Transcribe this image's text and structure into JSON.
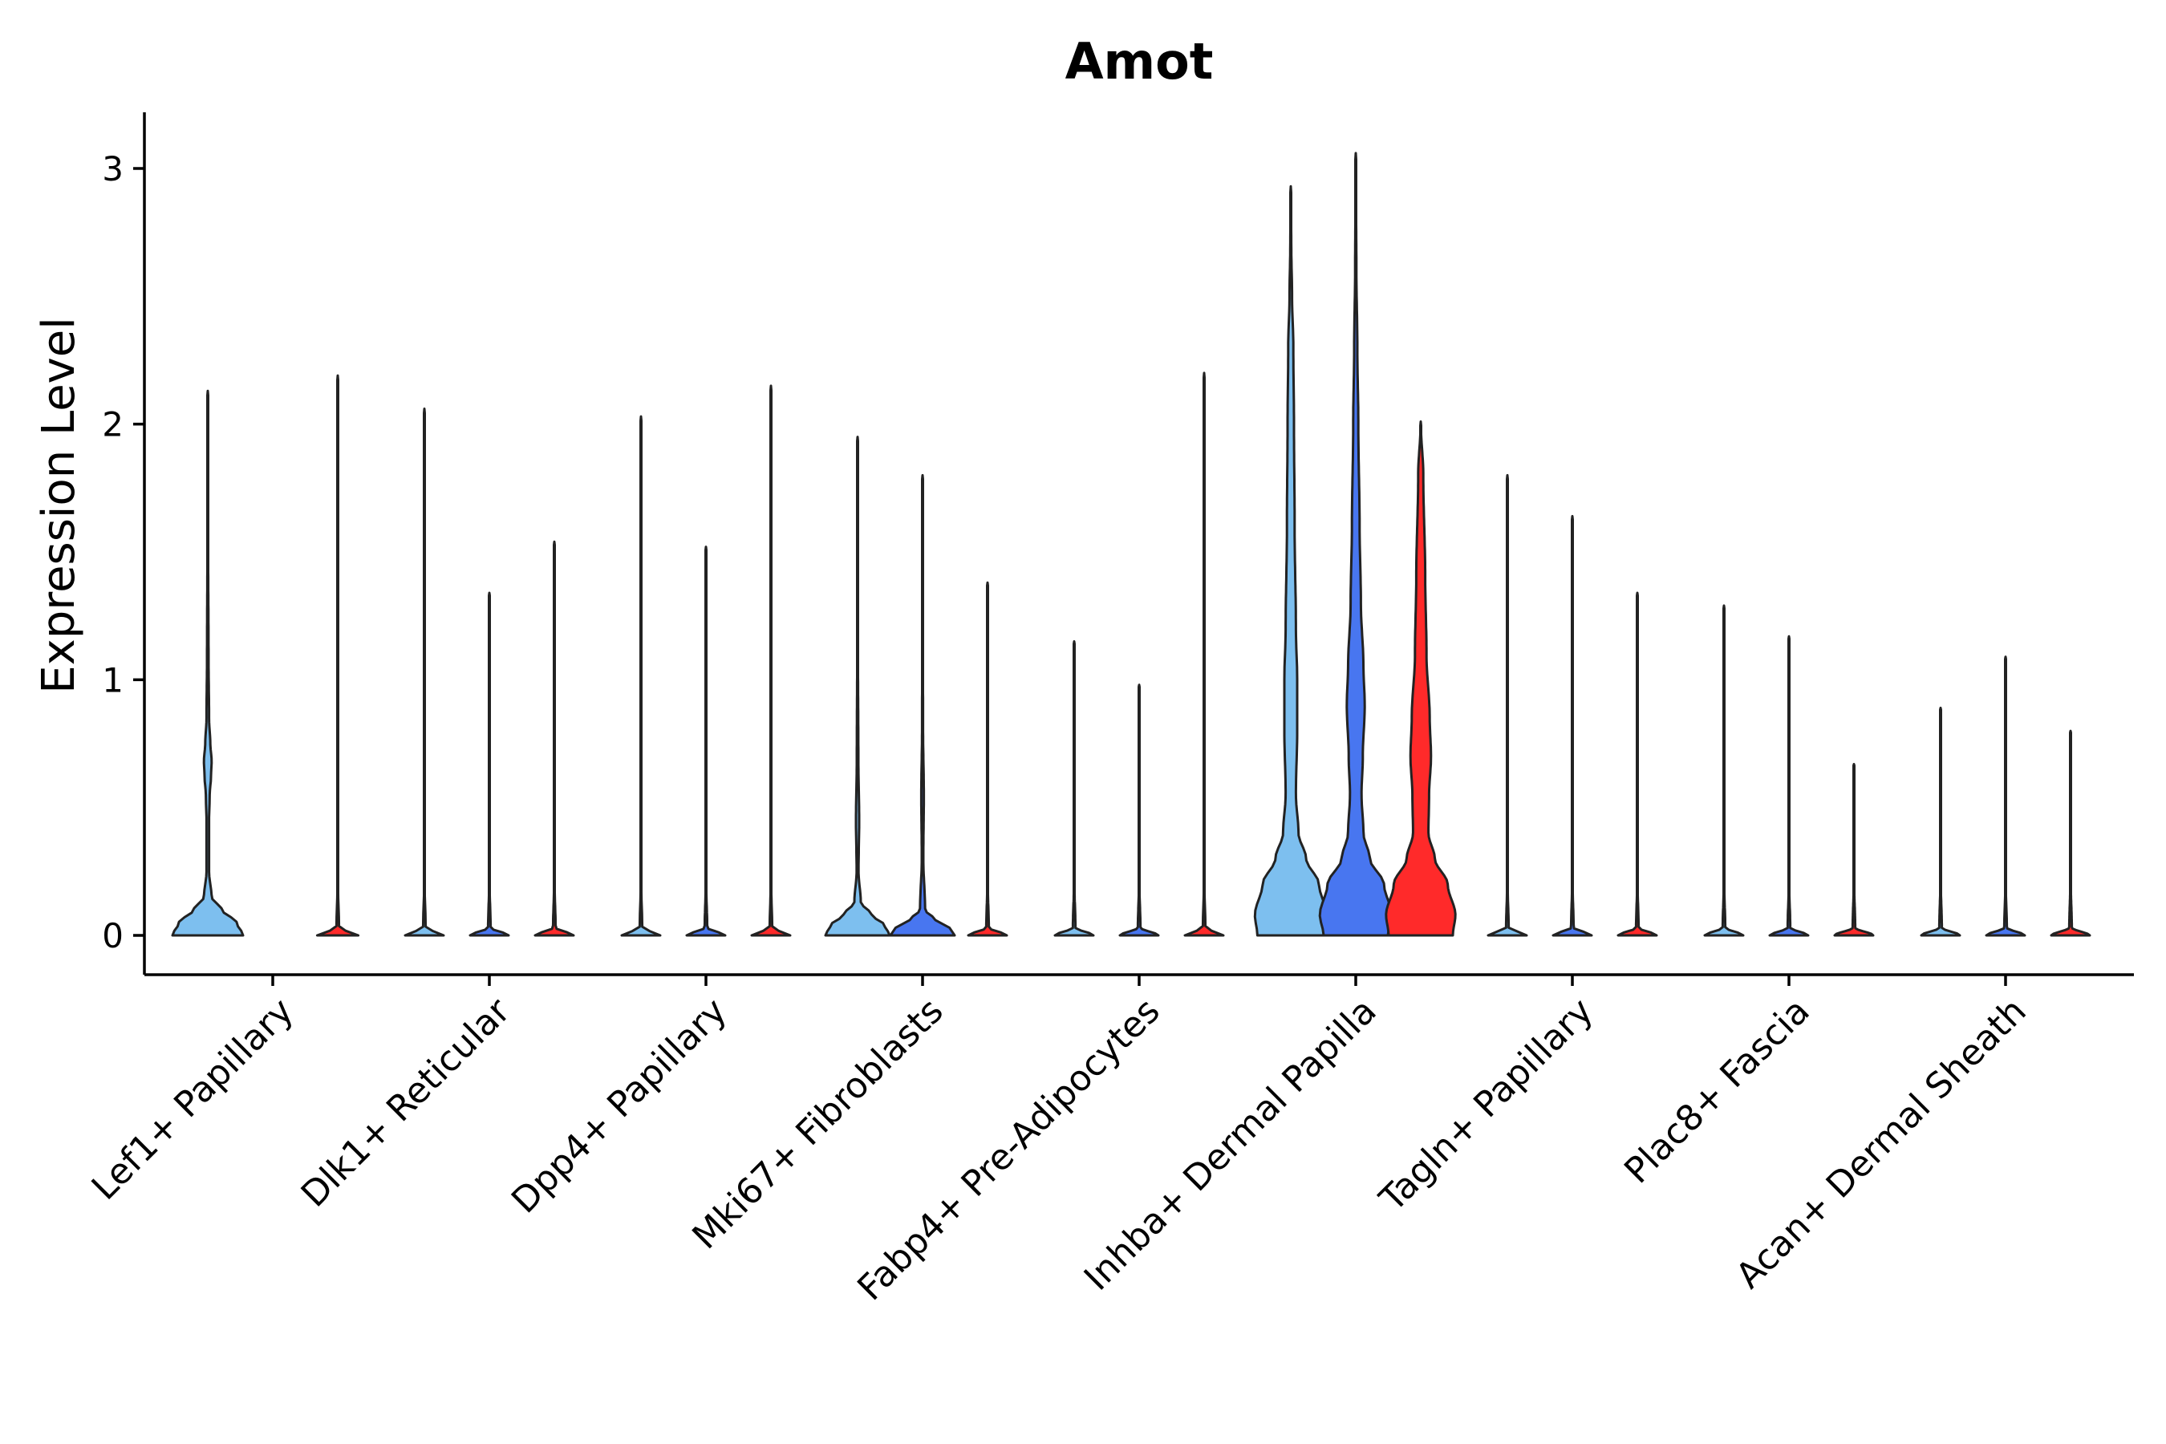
{
  "chart_data": {
    "type": "violin",
    "title": "Amot",
    "xlabel": "",
    "ylabel": "Expression Level",
    "ylim": [
      -0.15,
      3.2
    ],
    "yticks": [
      0,
      1,
      2,
      3
    ],
    "grid": false,
    "legend": "none",
    "colors": {
      "group1": "#7dbfef",
      "group2": "#4876f0",
      "group3": "#ff2a2a"
    },
    "categories": [
      "Lef1+ Papillary",
      "Dlk1+ Reticular",
      "Dpp4+ Papillary",
      "Mki67+ Fibroblasts",
      "Fabp4+ Pre-Adipocytes",
      "Inhba+ Dermal Papilla",
      "Tagln+ Papillary",
      "Plac8+ Fascia",
      "Acan+ Dermal Sheath"
    ],
    "series": [
      {
        "name": "group1",
        "color": "#7dbfef",
        "max_values": [
          2.13,
          2.06,
          2.03,
          1.95,
          1.15,
          2.93,
          1.8,
          1.29,
          0.89
        ]
      },
      {
        "name": "group2",
        "color": "#4876f0",
        "max_values": [
          null,
          1.34,
          1.52,
          1.8,
          0.98,
          3.06,
          1.64,
          1.17,
          1.09
        ]
      },
      {
        "name": "group3",
        "color": "#ff2a2a",
        "max_values": [
          2.19,
          1.54,
          2.15,
          1.38,
          2.2,
          2.01,
          1.34,
          0.67,
          0.8
        ]
      }
    ],
    "violins": [
      {
        "category": 0,
        "group": 0,
        "max": 2.13,
        "shape": [
          [
            0,
            0.55
          ],
          [
            0.05,
            0.45
          ],
          [
            0.1,
            0.22
          ],
          [
            0.15,
            0.06
          ],
          [
            0.25,
            0.02
          ],
          [
            0.45,
            0.02
          ],
          [
            0.55,
            0.03
          ],
          [
            0.62,
            0.05
          ],
          [
            0.68,
            0.06
          ],
          [
            0.75,
            0.04
          ],
          [
            0.85,
            0.02
          ],
          [
            1.1,
            0.012
          ],
          [
            1.5,
            0.006
          ],
          [
            2.13,
            0.0
          ]
        ]
      },
      {
        "category": 0,
        "group": 2,
        "max": 2.19,
        "shape": [
          [
            0,
            0.32
          ],
          [
            0.03,
            0.02
          ],
          [
            0.2,
            0.004
          ],
          [
            2.19,
            0.0
          ]
        ]
      },
      {
        "category": 1,
        "group": 0,
        "max": 2.06,
        "shape": [
          [
            0,
            0.3
          ],
          [
            0.03,
            0.02
          ],
          [
            0.2,
            0.004
          ],
          [
            2.06,
            0.0
          ]
        ]
      },
      {
        "category": 1,
        "group": 1,
        "max": 1.34,
        "shape": [
          [
            0,
            0.3
          ],
          [
            0.03,
            0.02
          ],
          [
            0.2,
            0.004
          ],
          [
            1.34,
            0.0
          ]
        ]
      },
      {
        "category": 1,
        "group": 2,
        "max": 1.54,
        "shape": [
          [
            0,
            0.3
          ],
          [
            0.03,
            0.02
          ],
          [
            0.2,
            0.004
          ],
          [
            1.54,
            0.0
          ]
        ]
      },
      {
        "category": 2,
        "group": 0,
        "max": 2.03,
        "shape": [
          [
            0,
            0.3
          ],
          [
            0.03,
            0.02
          ],
          [
            0.2,
            0.004
          ],
          [
            2.03,
            0.0
          ]
        ]
      },
      {
        "category": 2,
        "group": 1,
        "max": 1.52,
        "shape": [
          [
            0,
            0.3
          ],
          [
            0.03,
            0.02
          ],
          [
            0.2,
            0.004
          ],
          [
            1.52,
            0.0
          ]
        ]
      },
      {
        "category": 2,
        "group": 2,
        "max": 2.15,
        "shape": [
          [
            0,
            0.3
          ],
          [
            0.03,
            0.02
          ],
          [
            0.2,
            0.004
          ],
          [
            2.15,
            0.0
          ]
        ]
      },
      {
        "category": 3,
        "group": 0,
        "max": 1.95,
        "shape": [
          [
            0,
            0.5
          ],
          [
            0.04,
            0.42
          ],
          [
            0.08,
            0.22
          ],
          [
            0.13,
            0.05
          ],
          [
            0.25,
            0.015
          ],
          [
            0.45,
            0.025
          ],
          [
            0.7,
            0.012
          ],
          [
            1.1,
            0.006
          ],
          [
            1.95,
            0.0
          ]
        ]
      },
      {
        "category": 3,
        "group": 1,
        "max": 1.8,
        "shape": [
          [
            0,
            0.5
          ],
          [
            0.03,
            0.42
          ],
          [
            0.06,
            0.2
          ],
          [
            0.1,
            0.04
          ],
          [
            0.3,
            0.012
          ],
          [
            0.55,
            0.02
          ],
          [
            0.8,
            0.008
          ],
          [
            1.2,
            0.004
          ],
          [
            1.8,
            0.0
          ]
        ]
      },
      {
        "category": 3,
        "group": 2,
        "max": 1.38,
        "shape": [
          [
            0,
            0.3
          ],
          [
            0.03,
            0.02
          ],
          [
            0.2,
            0.004
          ],
          [
            1.38,
            0.0
          ]
        ]
      },
      {
        "category": 4,
        "group": 0,
        "max": 1.15,
        "shape": [
          [
            0,
            0.3
          ],
          [
            0.03,
            0.02
          ],
          [
            0.2,
            0.004
          ],
          [
            1.15,
            0.0
          ]
        ]
      },
      {
        "category": 4,
        "group": 1,
        "max": 0.98,
        "shape": [
          [
            0,
            0.3
          ],
          [
            0.03,
            0.02
          ],
          [
            0.2,
            0.004
          ],
          [
            0.98,
            0.0
          ]
        ]
      },
      {
        "category": 4,
        "group": 2,
        "max": 2.2,
        "shape": [
          [
            0,
            0.3
          ],
          [
            0.03,
            0.02
          ],
          [
            0.2,
            0.004
          ],
          [
            2.2,
            0.0
          ]
        ]
      },
      {
        "category": 5,
        "group": 0,
        "max": 2.93,
        "shape": [
          [
            0,
            0.52
          ],
          [
            0.08,
            0.56
          ],
          [
            0.2,
            0.44
          ],
          [
            0.3,
            0.24
          ],
          [
            0.4,
            0.12
          ],
          [
            0.55,
            0.08
          ],
          [
            0.8,
            0.1
          ],
          [
            1.0,
            0.1
          ],
          [
            1.2,
            0.08
          ],
          [
            1.6,
            0.06
          ],
          [
            2.0,
            0.05
          ],
          [
            2.3,
            0.04
          ],
          [
            2.5,
            0.02
          ],
          [
            2.7,
            0.008
          ],
          [
            2.93,
            0.0
          ]
        ]
      },
      {
        "category": 5,
        "group": 1,
        "max": 3.06,
        "shape": [
          [
            0,
            0.5
          ],
          [
            0.08,
            0.56
          ],
          [
            0.2,
            0.44
          ],
          [
            0.3,
            0.22
          ],
          [
            0.4,
            0.12
          ],
          [
            0.55,
            0.09
          ],
          [
            0.7,
            0.11
          ],
          [
            0.9,
            0.14
          ],
          [
            1.05,
            0.12
          ],
          [
            1.3,
            0.08
          ],
          [
            1.6,
            0.06
          ],
          [
            2.0,
            0.04
          ],
          [
            2.3,
            0.025
          ],
          [
            2.6,
            0.01
          ],
          [
            3.06,
            0.0
          ]
        ]
      },
      {
        "category": 5,
        "group": 2,
        "max": 2.01,
        "shape": [
          [
            0,
            0.5
          ],
          [
            0.08,
            0.54
          ],
          [
            0.2,
            0.42
          ],
          [
            0.3,
            0.22
          ],
          [
            0.4,
            0.12
          ],
          [
            0.55,
            0.13
          ],
          [
            0.7,
            0.16
          ],
          [
            0.85,
            0.14
          ],
          [
            1.1,
            0.09
          ],
          [
            1.4,
            0.07
          ],
          [
            1.8,
            0.04
          ],
          [
            2.01,
            0.0
          ]
        ]
      },
      {
        "category": 6,
        "group": 0,
        "max": 1.8,
        "shape": [
          [
            0,
            0.3
          ],
          [
            0.03,
            0.02
          ],
          [
            0.2,
            0.004
          ],
          [
            1.8,
            0.0
          ]
        ]
      },
      {
        "category": 6,
        "group": 1,
        "max": 1.64,
        "shape": [
          [
            0,
            0.3
          ],
          [
            0.03,
            0.02
          ],
          [
            0.2,
            0.004
          ],
          [
            1.64,
            0.0
          ]
        ]
      },
      {
        "category": 6,
        "group": 2,
        "max": 1.34,
        "shape": [
          [
            0,
            0.3
          ],
          [
            0.03,
            0.02
          ],
          [
            0.2,
            0.004
          ],
          [
            1.34,
            0.0
          ]
        ]
      },
      {
        "category": 7,
        "group": 0,
        "max": 1.29,
        "shape": [
          [
            0,
            0.3
          ],
          [
            0.03,
            0.02
          ],
          [
            0.2,
            0.004
          ],
          [
            1.29,
            0.0
          ]
        ]
      },
      {
        "category": 7,
        "group": 1,
        "max": 1.17,
        "shape": [
          [
            0,
            0.3
          ],
          [
            0.03,
            0.02
          ],
          [
            0.2,
            0.004
          ],
          [
            1.17,
            0.0
          ]
        ]
      },
      {
        "category": 7,
        "group": 2,
        "max": 0.67,
        "shape": [
          [
            0,
            0.3
          ],
          [
            0.03,
            0.02
          ],
          [
            0.2,
            0.004
          ],
          [
            0.67,
            0.0
          ]
        ]
      },
      {
        "category": 8,
        "group": 0,
        "max": 0.89,
        "shape": [
          [
            0,
            0.3
          ],
          [
            0.03,
            0.02
          ],
          [
            0.2,
            0.004
          ],
          [
            0.89,
            0.0
          ]
        ]
      },
      {
        "category": 8,
        "group": 1,
        "max": 1.09,
        "shape": [
          [
            0,
            0.3
          ],
          [
            0.03,
            0.02
          ],
          [
            0.2,
            0.004
          ],
          [
            1.09,
            0.0
          ]
        ]
      },
      {
        "category": 8,
        "group": 2,
        "max": 0.8,
        "shape": [
          [
            0,
            0.3
          ],
          [
            0.03,
            0.02
          ],
          [
            0.2,
            0.004
          ],
          [
            0.8,
            0.0
          ]
        ]
      }
    ]
  }
}
